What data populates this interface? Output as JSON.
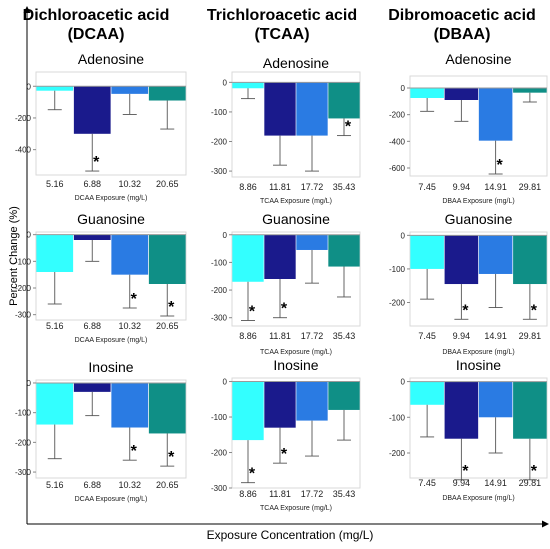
{
  "figure": {
    "y_axis_title": "Percent Change (%)",
    "x_axis_title": "Exposure Concentration (mg/L)",
    "columns": [
      {
        "title_line1": "Dichloroacetic acid",
        "title_line2": "(DCAA)"
      },
      {
        "title_line1": "Trichloroacetic acid",
        "title_line2": "(TCAA)"
      },
      {
        "title_line1": "Dibromoacetic acid",
        "title_line2": "(DBAA)"
      }
    ]
  },
  "colors": {
    "c1": "#33ffff",
    "c2": "#1a1a8c",
    "c3": "#2a7be3",
    "c4": "#0f8f86"
  },
  "chart_data": [
    {
      "type": "bar",
      "compound": "DCAA",
      "title": "Adenosine",
      "xlabel": "DCAA Exposure (mg/L)",
      "categories": [
        "5.16",
        "6.88",
        "10.32",
        "20.65"
      ],
      "ylim": [
        -560,
        90
      ],
      "yticks": [
        0,
        -200,
        -400
      ],
      "values": [
        -28,
        -300,
        -48,
        -90
      ],
      "errors": [
        120,
        235,
        130,
        180
      ],
      "sig": [
        false,
        true,
        false,
        false
      ]
    },
    {
      "type": "bar",
      "compound": "TCAA",
      "title": "Adenosine",
      "xlabel": "TCAA Exposure (mg/L)",
      "categories": [
        "8.86",
        "11.81",
        "17.72",
        "35.43"
      ],
      "ylim": [
        -320,
        35
      ],
      "yticks": [
        0,
        -100,
        -200,
        -300
      ],
      "values": [
        -20,
        -180,
        -180,
        -122
      ],
      "errors": [
        35,
        100,
        120,
        58
      ],
      "sig": [
        false,
        false,
        false,
        true
      ]
    },
    {
      "type": "bar",
      "compound": "DBAA",
      "title": "Adenosine",
      "xlabel": "DBAA Exposure (mg/L)",
      "categories": [
        "7.45",
        "9.94",
        "14.91",
        "29.81"
      ],
      "ylim": [
        -660,
        90
      ],
      "yticks": [
        0,
        -200,
        -400,
        -600
      ],
      "values": [
        -75,
        -90,
        -395,
        -35
      ],
      "errors": [
        100,
        160,
        250,
        70
      ],
      "sig": [
        false,
        false,
        true,
        false
      ]
    },
    {
      "type": "bar",
      "compound": "DCAA",
      "title": "Guanosine",
      "xlabel": "DCAA Exposure (mg/L)",
      "categories": [
        "5.16",
        "6.88",
        "10.32",
        "20.65"
      ],
      "ylim": [
        -320,
        10
      ],
      "yticks": [
        0,
        -100,
        -200,
        -300
      ],
      "values": [
        -140,
        -20,
        -150,
        -185
      ],
      "errors": [
        120,
        80,
        125,
        120
      ],
      "sig": [
        false,
        false,
        true,
        true
      ]
    },
    {
      "type": "bar",
      "compound": "TCAA",
      "title": "Guanosine",
      "xlabel": "TCAA Exposure (mg/L)",
      "categories": [
        "8.86",
        "11.81",
        "17.72",
        "35.43"
      ],
      "ylim": [
        -330,
        10
      ],
      "yticks": [
        0,
        -100,
        -200,
        -300
      ],
      "values": [
        -170,
        -160,
        -55,
        -115
      ],
      "errors": [
        140,
        140,
        120,
        110
      ],
      "sig": [
        true,
        true,
        false,
        false
      ]
    },
    {
      "type": "bar",
      "compound": "DBAA",
      "title": "Guanosine",
      "xlabel": "DBAA Exposure (mg/L)",
      "categories": [
        "7.45",
        "9.94",
        "14.91",
        "29.81"
      ],
      "ylim": [
        -270,
        10
      ],
      "yticks": [
        0,
        -100,
        -200
      ],
      "values": [
        -100,
        -145,
        -115,
        -145
      ],
      "errors": [
        90,
        105,
        100,
        105
      ],
      "sig": [
        false,
        true,
        false,
        true
      ]
    },
    {
      "type": "bar",
      "compound": "DCAA",
      "title": "Inosine",
      "xlabel": "DCAA Exposure (mg/L)",
      "categories": [
        "5.16",
        "6.88",
        "10.32",
        "20.65"
      ],
      "ylim": [
        -320,
        10
      ],
      "yticks": [
        0,
        -100,
        -200,
        -300
      ],
      "values": [
        -140,
        -30,
        -150,
        -170
      ],
      "errors": [
        115,
        80,
        110,
        110
      ],
      "sig": [
        false,
        false,
        true,
        true
      ]
    },
    {
      "type": "bar",
      "compound": "TCAA",
      "title": "Inosine",
      "xlabel": "TCAA Exposure (mg/L)",
      "categories": [
        "8.86",
        "11.81",
        "17.72",
        "35.43"
      ],
      "ylim": [
        -300,
        10
      ],
      "yticks": [
        0,
        -100,
        -200,
        -300
      ],
      "values": [
        -165,
        -130,
        -110,
        -80
      ],
      "errors": [
        120,
        100,
        100,
        85
      ],
      "sig": [
        true,
        true,
        false,
        false
      ]
    },
    {
      "type": "bar",
      "compound": "DBAA",
      "title": "Inosine",
      "xlabel": "DBAA Exposure (mg/L)",
      "categories": [
        "7.45",
        "9.94",
        "14.91",
        "29.81"
      ],
      "ylim": [
        -270,
        10
      ],
      "yticks": [
        0,
        -100,
        -200
      ],
      "values": [
        -65,
        -160,
        -100,
        -160
      ],
      "errors": [
        90,
        115,
        100,
        115
      ],
      "sig": [
        false,
        true,
        false,
        true
      ]
    }
  ]
}
